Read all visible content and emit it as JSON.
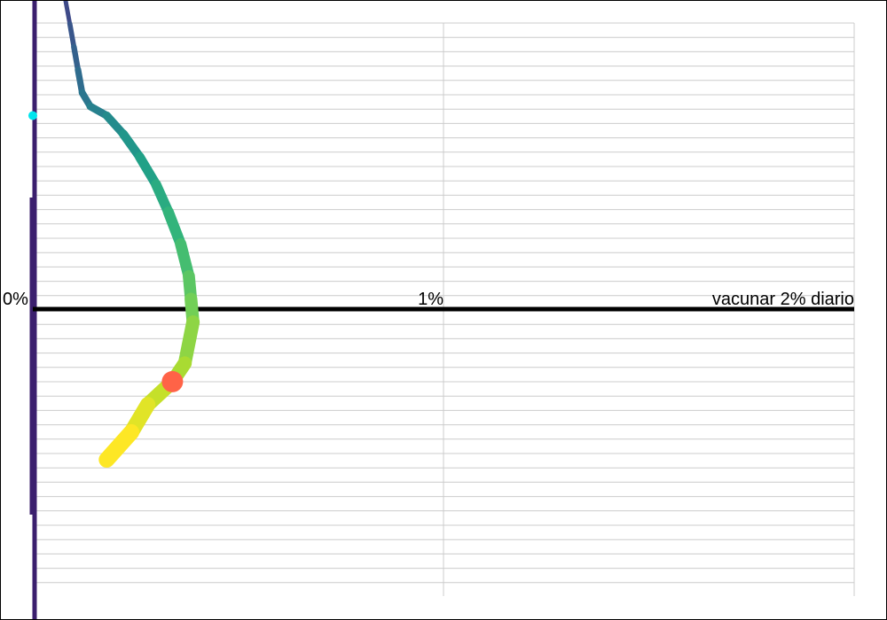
{
  "chart_data": {
    "type": "line",
    "title": "",
    "xlabel": "",
    "ylabel": "",
    "x_ticks": [
      {
        "value": 0,
        "label": "0%"
      },
      {
        "value": 1,
        "label": "1%"
      },
      {
        "value": 2,
        "label": "vacunar 2% diario"
      }
    ],
    "xlim": [
      0,
      2
    ],
    "grid": true,
    "series": [
      {
        "color_start": "#3e4a89",
        "color_end": "#fde725",
        "points": [
          [
            0.08,
            1.0
          ],
          [
            0.09,
            0.95
          ],
          [
            0.1,
            0.9
          ],
          [
            0.11,
            0.85
          ],
          [
            0.12,
            0.8
          ],
          [
            0.14,
            0.77
          ],
          [
            0.18,
            0.75
          ],
          [
            0.22,
            0.71
          ],
          [
            0.26,
            0.66
          ],
          [
            0.3,
            0.6
          ],
          [
            0.33,
            0.54
          ],
          [
            0.36,
            0.47
          ],
          [
            0.38,
            0.4
          ],
          [
            0.385,
            0.35
          ],
          [
            0.39,
            0.3
          ],
          [
            0.37,
            0.21
          ],
          [
            0.34,
            0.17
          ],
          [
            0.28,
            0.12
          ],
          [
            0.24,
            0.06
          ],
          [
            0.18,
            0.0
          ]
        ]
      }
    ],
    "markers": [
      {
        "name": "current",
        "x": 0.34,
        "y": 0.17,
        "color": "#ff6347"
      },
      {
        "name": "start",
        "x": 0.0,
        "y": 0.75,
        "color": "#00e5ee"
      }
    ],
    "zero_line_color": "#3b1f6e",
    "axis_color": "#000000",
    "grid_color": "#cccccc"
  }
}
